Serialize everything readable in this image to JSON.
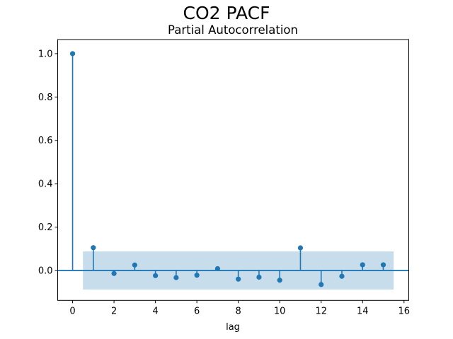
{
  "chart_data": {
    "type": "stem",
    "suptitle": "CO2 PACF",
    "title": "Partial Autocorrelation",
    "xlabel": "lag",
    "ylabel": "",
    "x": [
      0,
      1,
      2,
      3,
      4,
      5,
      6,
      7,
      8,
      9,
      10,
      11,
      12,
      13,
      14,
      15
    ],
    "values": [
      1.0,
      0.105,
      -0.014,
      0.025,
      -0.024,
      -0.033,
      -0.022,
      0.008,
      -0.04,
      -0.031,
      -0.045,
      0.104,
      -0.065,
      -0.027,
      0.026,
      0.026
    ],
    "confidence_band": {
      "x_start": 0.5,
      "x_end": 15.5,
      "lower": -0.088,
      "upper": 0.088
    },
    "zero_line_y": 0,
    "xlim": [
      -0.72,
      16.23
    ],
    "ylim": [
      -0.138,
      1.065
    ],
    "xtick_values": [
      0,
      2,
      4,
      6,
      8,
      10,
      12,
      14,
      16
    ],
    "xtick_labels": [
      "0",
      "2",
      "4",
      "6",
      "8",
      "10",
      "12",
      "14",
      "16"
    ],
    "ytick_values": [
      0.0,
      0.2,
      0.4,
      0.6,
      0.8,
      1.0
    ],
    "ytick_labels": [
      "0.0",
      "0.2",
      "0.4",
      "0.6",
      "0.8",
      "1.0"
    ],
    "grid": false,
    "legend": null,
    "colors": {
      "series": "#1f77b4",
      "band": "#1f77b4",
      "band_opacity": 0.25,
      "frame": "#000000",
      "text": "#000000",
      "background": "#ffffff"
    }
  }
}
